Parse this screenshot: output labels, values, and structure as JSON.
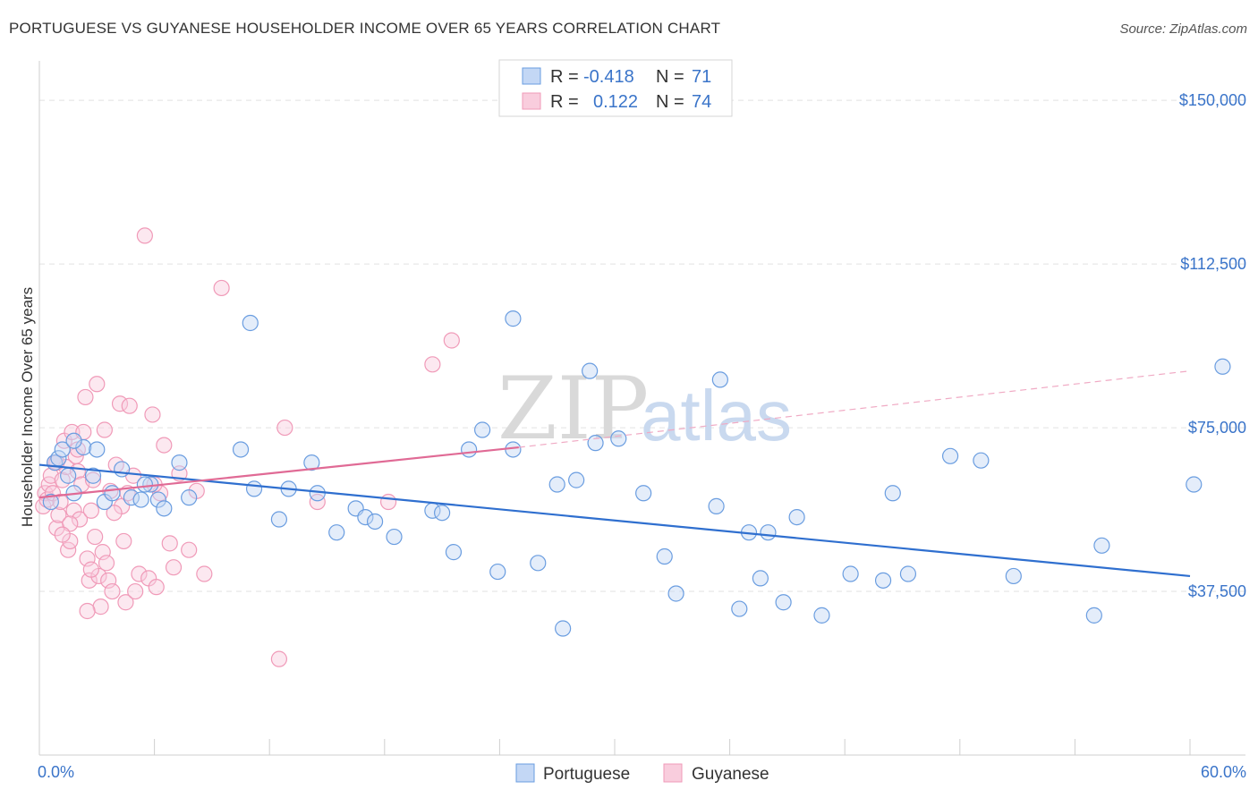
{
  "title": "PORTUGUESE VS GUYANESE HOUSEHOLDER INCOME OVER 65 YEARS CORRELATION CHART",
  "source": "Source: ZipAtlas.com",
  "watermark": {
    "zip": "ZIP",
    "atlas": "atlas"
  },
  "legend": {
    "rows": [
      {
        "r_label": "R =",
        "r_value": "-0.418",
        "n_label": "N =",
        "n_value": "71"
      },
      {
        "r_label": "R =",
        "r_value": "0.122",
        "n_label": "N =",
        "n_value": "74"
      }
    ]
  },
  "chart_data": {
    "type": "scatter",
    "title": "PORTUGUESE VS GUYANESE HOUSEHOLDER INCOME OVER 65 YEARS CORRELATION CHART",
    "xlabel": "",
    "ylabel": "Householder Income Over 65 years",
    "xlim": [
      0,
      60
    ],
    "ylim": [
      0,
      157000
    ],
    "x_tick_labels": [
      "0.0%",
      "60.0%"
    ],
    "y_ticks": [
      37500,
      75000,
      112500,
      150000
    ],
    "y_tick_labels": [
      "$37,500",
      "$75,000",
      "$112,500",
      "$150,000"
    ],
    "grid": true,
    "legend_position": "top-center",
    "colors": {
      "portuguese": "#6a9de0",
      "guyanese": "#f09ab8",
      "portuguese_line": "#2f6fcf",
      "guyanese_line": "#e06a95"
    },
    "series": [
      {
        "name": "Portuguese",
        "trend": {
          "x0": 0,
          "y0": 66500,
          "x1": 60,
          "y1": 41000
        },
        "points": [
          [
            0.6,
            58000
          ],
          [
            0.8,
            67000
          ],
          [
            1.0,
            68000
          ],
          [
            1.2,
            70000
          ],
          [
            1.5,
            64000
          ],
          [
            1.8,
            60000
          ],
          [
            2.3,
            70500
          ],
          [
            2.8,
            64000
          ],
          [
            3.0,
            70000
          ],
          [
            3.4,
            58000
          ],
          [
            3.8,
            60000
          ],
          [
            4.3,
            65500
          ],
          [
            4.8,
            59000
          ],
          [
            5.3,
            58500
          ],
          [
            5.8,
            62000
          ],
          [
            6.2,
            58500
          ],
          [
            6.5,
            56500
          ],
          [
            7.3,
            67000
          ],
          [
            7.8,
            59000
          ],
          [
            10.5,
            70000
          ],
          [
            11.2,
            61000
          ],
          [
            12.5,
            54000
          ],
          [
            13.0,
            61000
          ],
          [
            14.2,
            67000
          ],
          [
            14.5,
            60000
          ],
          [
            15.5,
            51000
          ],
          [
            16.5,
            56500
          ],
          [
            17.0,
            54500
          ],
          [
            17.5,
            53500
          ],
          [
            18.5,
            50000
          ],
          [
            20.5,
            56000
          ],
          [
            21.0,
            55500
          ],
          [
            21.6,
            46500
          ],
          [
            22.4,
            70000
          ],
          [
            23.1,
            74500
          ],
          [
            23.9,
            42000
          ],
          [
            24.7,
            70000
          ],
          [
            26.0,
            44000
          ],
          [
            27.0,
            62000
          ],
          [
            27.3,
            29000
          ],
          [
            28.0,
            63000
          ],
          [
            28.7,
            88000
          ],
          [
            29.0,
            71500
          ],
          [
            30.2,
            72500
          ],
          [
            31.5,
            60000
          ],
          [
            32.6,
            45500
          ],
          [
            33.2,
            37000
          ],
          [
            35.3,
            57000
          ],
          [
            35.5,
            86000
          ],
          [
            36.5,
            33500
          ],
          [
            37.0,
            51000
          ],
          [
            37.6,
            40500
          ],
          [
            38.0,
            51000
          ],
          [
            38.8,
            35000
          ],
          [
            39.5,
            54500
          ],
          [
            40.8,
            32000
          ],
          [
            42.3,
            41500
          ],
          [
            44.0,
            40000
          ],
          [
            44.5,
            60000
          ],
          [
            45.3,
            41500
          ],
          [
            47.5,
            68500
          ],
          [
            49.1,
            67500
          ],
          [
            50.8,
            41000
          ],
          [
            55.0,
            32000
          ],
          [
            55.4,
            48000
          ],
          [
            60.2,
            62000
          ],
          [
            61.7,
            89000
          ],
          [
            11.0,
            99000
          ],
          [
            24.7,
            100000
          ],
          [
            5.5,
            62000
          ],
          [
            1.8,
            72000
          ]
        ]
      },
      {
        "name": "Guyanese",
        "trend": {
          "x0": 0,
          "y0": 59000,
          "x1": 25,
          "y1": 70500,
          "dash_x1": 60,
          "dash_y1": 88000
        },
        "points": [
          [
            0.2,
            57000
          ],
          [
            0.3,
            60000
          ],
          [
            0.4,
            58500
          ],
          [
            0.5,
            62000
          ],
          [
            0.6,
            64000
          ],
          [
            0.7,
            60000
          ],
          [
            0.8,
            67000
          ],
          [
            0.9,
            52000
          ],
          [
            1.0,
            55000
          ],
          [
            1.1,
            58000
          ],
          [
            1.2,
            63000
          ],
          [
            1.3,
            72000
          ],
          [
            1.4,
            66000
          ],
          [
            1.5,
            47000
          ],
          [
            1.6,
            49000
          ],
          [
            1.7,
            74000
          ],
          [
            1.8,
            56000
          ],
          [
            1.9,
            68500
          ],
          [
            2.0,
            65000
          ],
          [
            2.1,
            54000
          ],
          [
            2.2,
            62000
          ],
          [
            2.3,
            74000
          ],
          [
            2.4,
            82000
          ],
          [
            2.5,
            45000
          ],
          [
            2.6,
            40000
          ],
          [
            2.7,
            56000
          ],
          [
            2.8,
            63000
          ],
          [
            2.9,
            50000
          ],
          [
            3.0,
            85000
          ],
          [
            3.1,
            41000
          ],
          [
            3.2,
            34000
          ],
          [
            3.3,
            46500
          ],
          [
            3.4,
            74500
          ],
          [
            3.5,
            44000
          ],
          [
            3.6,
            40000
          ],
          [
            3.8,
            37500
          ],
          [
            4.0,
            66500
          ],
          [
            4.2,
            80500
          ],
          [
            4.3,
            57000
          ],
          [
            4.4,
            49000
          ],
          [
            4.5,
            35000
          ],
          [
            4.7,
            80000
          ],
          [
            4.9,
            64000
          ],
          [
            5.0,
            37500
          ],
          [
            5.2,
            41500
          ],
          [
            5.5,
            119000
          ],
          [
            5.7,
            40500
          ],
          [
            5.9,
            78000
          ],
          [
            6.1,
            38500
          ],
          [
            6.3,
            60000
          ],
          [
            6.5,
            71000
          ],
          [
            6.8,
            48500
          ],
          [
            7.0,
            43000
          ],
          [
            7.3,
            64500
          ],
          [
            7.8,
            47000
          ],
          [
            8.2,
            60500
          ],
          [
            8.6,
            41500
          ],
          [
            9.5,
            107000
          ],
          [
            12.5,
            22000
          ],
          [
            12.8,
            75000
          ],
          [
            14.5,
            58000
          ],
          [
            18.2,
            58000
          ],
          [
            20.5,
            89500
          ],
          [
            21.5,
            95000
          ],
          [
            2.5,
            33000
          ],
          [
            3.7,
            60500
          ],
          [
            1.6,
            53000
          ],
          [
            0.9,
            67000
          ],
          [
            2.0,
            70000
          ],
          [
            3.9,
            55500
          ],
          [
            4.6,
            60000
          ],
          [
            6.0,
            62000
          ],
          [
            1.2,
            50500
          ],
          [
            2.7,
            42500
          ]
        ]
      }
    ]
  },
  "bottom_legend": {
    "items": [
      "Portuguese",
      "Guyanese"
    ]
  }
}
